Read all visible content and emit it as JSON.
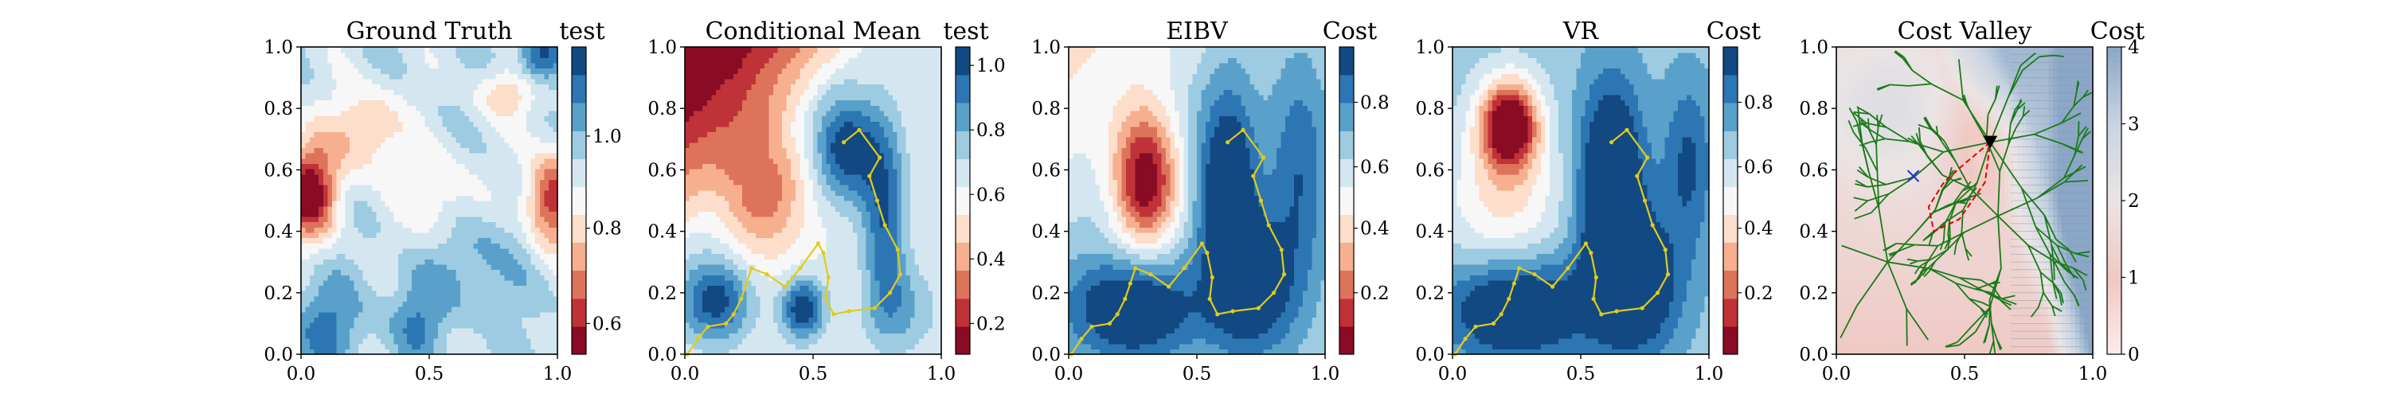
{
  "figure": {
    "panels": [
      {
        "title": "Ground Truth",
        "colorbar_label": "test",
        "cmap": "RdBu",
        "field": "truth",
        "colorbar_ticks": [
          {
            "label": "0.6",
            "frac": 0.1
          },
          {
            "label": "0.8",
            "frac": 0.41
          },
          {
            "label": "1.0",
            "frac": 0.71
          }
        ]
      },
      {
        "title": "Conditional Mean",
        "colorbar_label": "test",
        "cmap": "RdBu",
        "field": "mean",
        "path": true,
        "colorbar_ticks": [
          {
            "label": "0.2",
            "frac": 0.1
          },
          {
            "label": "0.4",
            "frac": 0.31
          },
          {
            "label": "0.6",
            "frac": 0.52
          },
          {
            "label": "0.8",
            "frac": 0.73
          },
          {
            "label": "1.0",
            "frac": 0.94
          }
        ]
      },
      {
        "title": "EIBV",
        "colorbar_label": "Cost",
        "cmap": "RdBu",
        "field": "eibv",
        "path": true,
        "colorbar_ticks": [
          {
            "label": "0.2",
            "frac": 0.2
          },
          {
            "label": "0.4",
            "frac": 0.41
          },
          {
            "label": "0.6",
            "frac": 0.61
          },
          {
            "label": "0.8",
            "frac": 0.82
          }
        ]
      },
      {
        "title": "VR",
        "colorbar_label": "Cost",
        "cmap": "RdBu",
        "field": "vr",
        "path": true,
        "colorbar_ticks": [
          {
            "label": "0.2",
            "frac": 0.2
          },
          {
            "label": "0.4",
            "frac": 0.41
          },
          {
            "label": "0.6",
            "frac": 0.61
          },
          {
            "label": "0.8",
            "frac": 0.82
          }
        ]
      },
      {
        "title": "Cost Valley",
        "colorbar_label": "Cost",
        "cmap": "cost",
        "field": "valley",
        "tree": true,
        "colorbar_ticks": [
          {
            "label": "0",
            "frac": 0.0
          },
          {
            "label": "1",
            "frac": 0.25
          },
          {
            "label": "2",
            "frac": 0.5
          },
          {
            "label": "3",
            "frac": 0.75
          },
          {
            "label": "4",
            "frac": 1.0
          }
        ]
      }
    ],
    "axis_ticks": [
      "0.0",
      "0.2",
      "0.4",
      "0.6",
      "0.8",
      "1.0"
    ],
    "x_ticks": [
      "0.0",
      "0.5",
      "1.0"
    ]
  },
  "chart_data": {
    "type": "heatmap",
    "panel_titles": [
      "Ground Truth",
      "Conditional Mean",
      "EIBV",
      "VR",
      "Cost Valley"
    ],
    "x_range": [
      0.0,
      1.0
    ],
    "y_range": [
      0.0,
      1.0
    ],
    "colorbar_ranges": [
      [
        0.5,
        1.15
      ],
      [
        0.1,
        1.05
      ],
      [
        0.0,
        0.98
      ],
      [
        0.0,
        0.98
      ],
      [
        0.0,
        4.0
      ]
    ],
    "colors": {
      "path": "#e0cc1a",
      "tree": "#1a7a1a",
      "planned_path": "#e00000",
      "target": "#000000",
      "marker": "#2233cc"
    },
    "path_xy": [
      [
        0.62,
        0.69
      ],
      [
        0.68,
        0.73
      ],
      [
        0.76,
        0.64
      ],
      [
        0.72,
        0.58
      ],
      [
        0.75,
        0.5
      ],
      [
        0.78,
        0.42
      ],
      [
        0.83,
        0.34
      ],
      [
        0.84,
        0.26
      ],
      [
        0.8,
        0.2
      ],
      [
        0.74,
        0.15
      ],
      [
        0.64,
        0.14
      ],
      [
        0.58,
        0.13
      ],
      [
        0.55,
        0.18
      ],
      [
        0.56,
        0.25
      ],
      [
        0.54,
        0.33
      ],
      [
        0.52,
        0.36
      ],
      [
        0.45,
        0.28
      ],
      [
        0.39,
        0.22
      ],
      [
        0.32,
        0.26
      ],
      [
        0.26,
        0.28
      ],
      [
        0.24,
        0.23
      ],
      [
        0.22,
        0.18
      ],
      [
        0.19,
        0.13
      ],
      [
        0.16,
        0.1
      ],
      [
        0.09,
        0.09
      ],
      [
        0.05,
        0.05
      ],
      [
        0.01,
        0.0
      ]
    ],
    "cost_valley": {
      "target": [
        0.6,
        0.69
      ],
      "marker": [
        0.3,
        0.58
      ],
      "planned_path": [
        [
          0.6,
          0.69
        ],
        [
          0.5,
          0.62
        ],
        [
          0.42,
          0.56
        ],
        [
          0.36,
          0.48
        ],
        [
          0.38,
          0.4
        ],
        [
          0.48,
          0.44
        ],
        [
          0.58,
          0.56
        ],
        [
          0.6,
          0.69
        ]
      ]
    }
  }
}
